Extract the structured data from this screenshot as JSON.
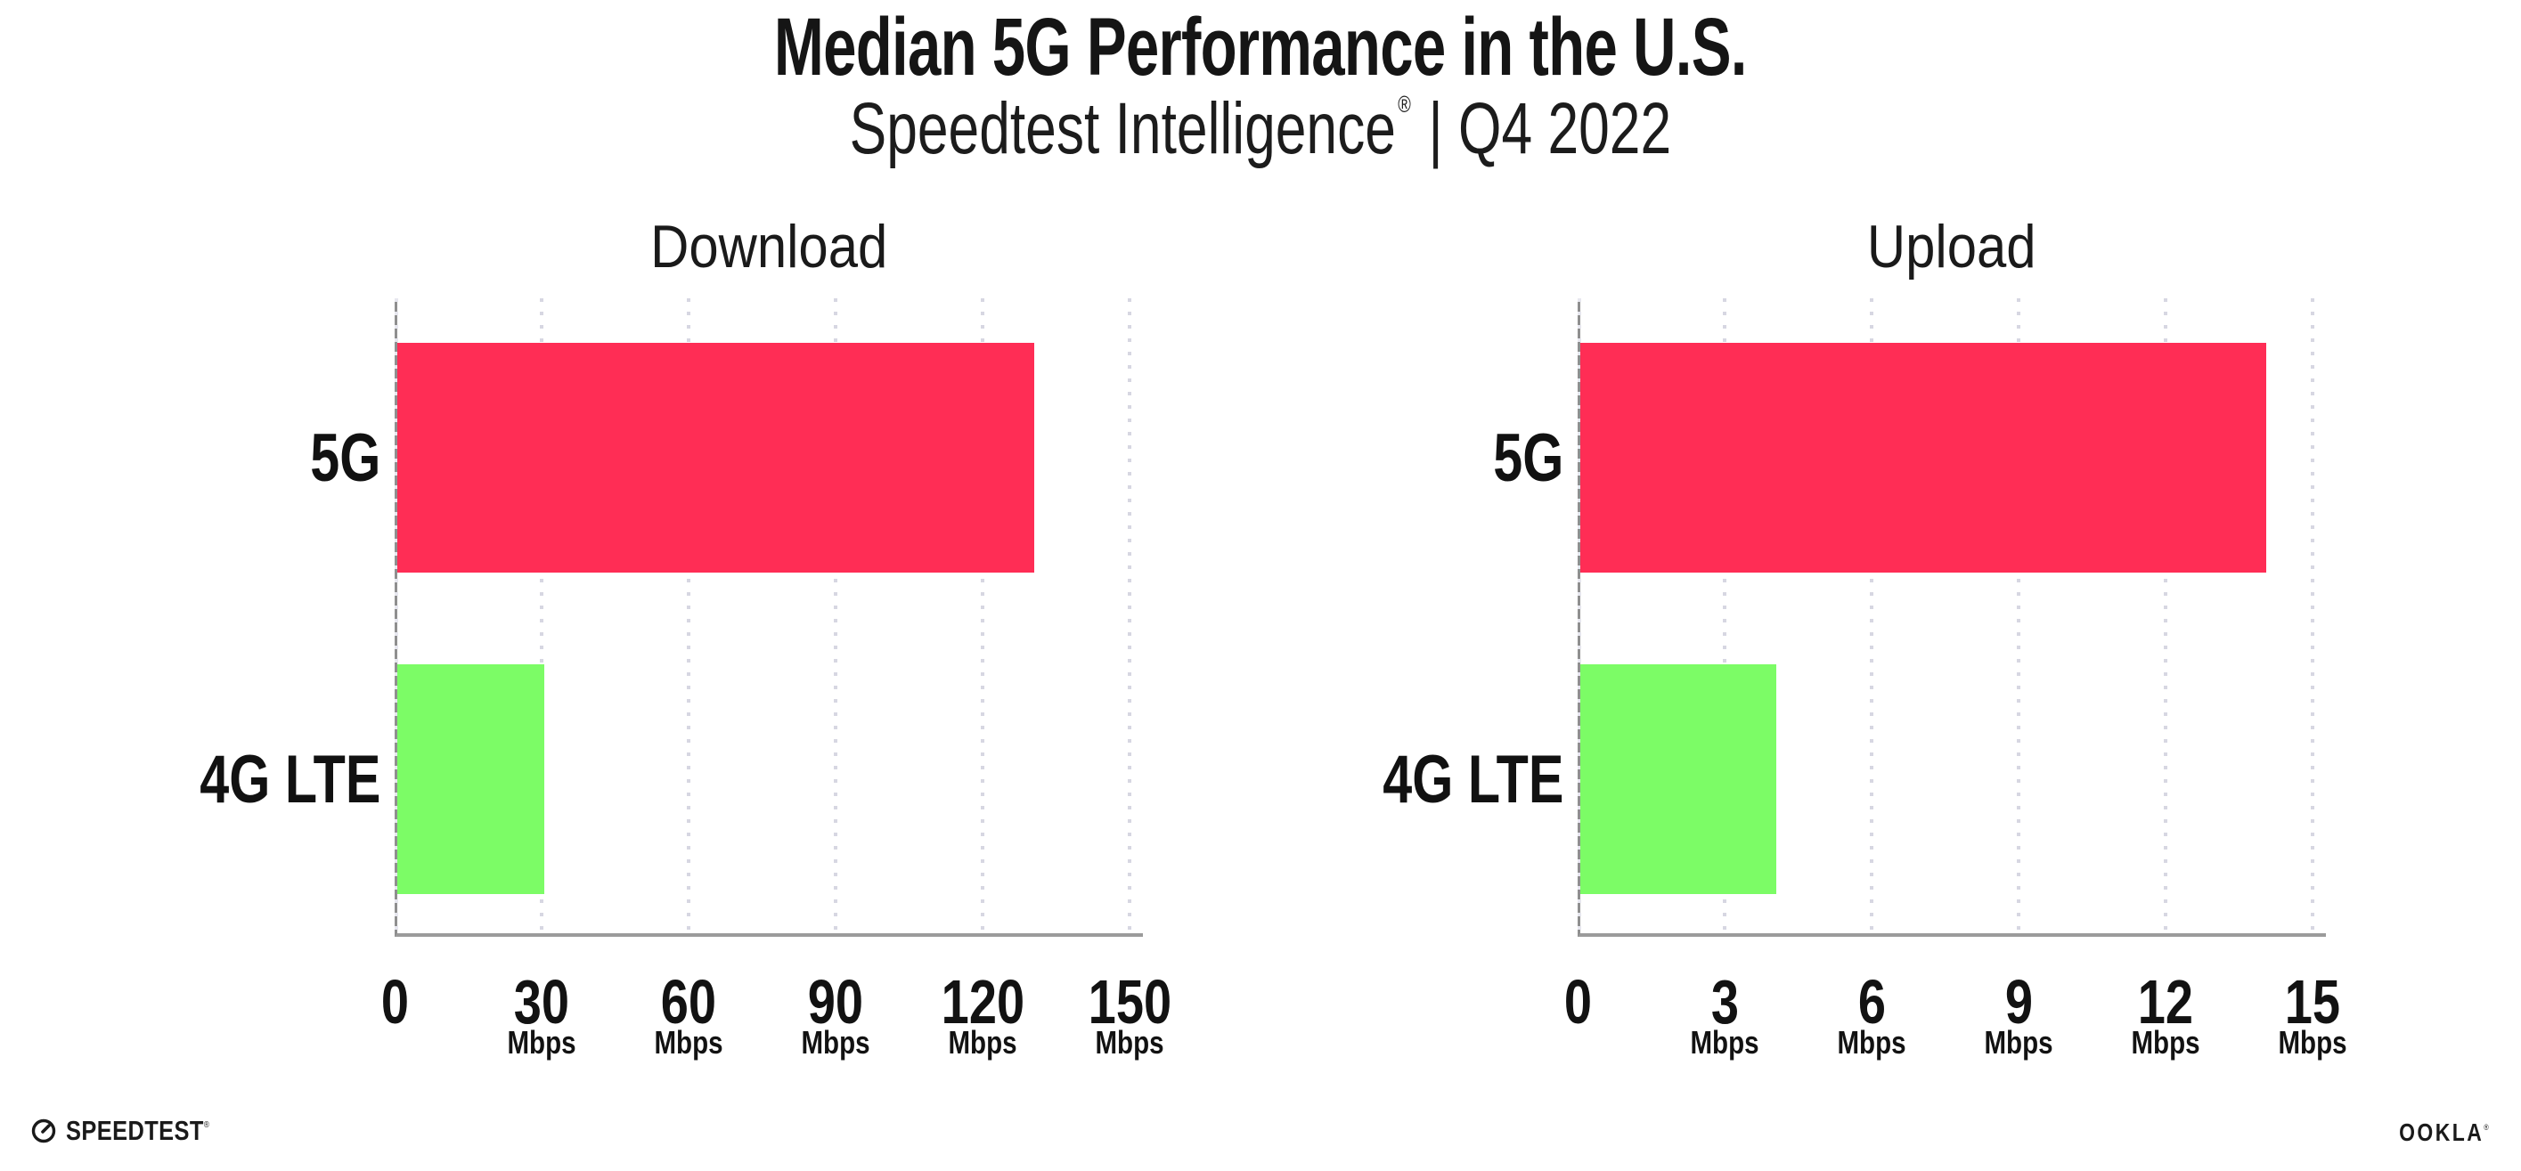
{
  "header": {
    "subtitle_brand": "Speedtest Intelligence",
    "subtitle_reg": "®",
    "subtitle_rest": "| Q4 2022"
  },
  "chart_data": {
    "type": "bar",
    "orientation": "horizontal",
    "title": "Median 5G Performance in the U.S.",
    "subtitle": "Speedtest Intelligence® | Q4 2022",
    "grid": "vertical dotted gridlines",
    "legend": false,
    "charts": [
      {
        "title": "Download",
        "categories": [
          "5G",
          "4G LTE"
        ],
        "values": [
          130,
          30
        ],
        "unit": "Mbps",
        "xlim": [
          0,
          150
        ],
        "xticks": [
          0,
          30,
          60,
          90,
          120,
          150
        ],
        "bar_colors": [
          "#FF2D55",
          "#7CFC66"
        ]
      },
      {
        "title": "Upload",
        "categories": [
          "5G",
          "4G LTE"
        ],
        "values": [
          14,
          4
        ],
        "unit": "Mbps",
        "xlim": [
          0,
          15
        ],
        "xticks": [
          0,
          3,
          6,
          9,
          12,
          15
        ],
        "bar_colors": [
          "#FF2D55",
          "#7CFC66"
        ]
      }
    ]
  },
  "colors": {
    "bar_5g": "#FF2D55",
    "bar_4g_lte": "#7CFC66",
    "axis": "#9B9B9B",
    "y_axis": "#8F8F8F",
    "grid_dots": "#D7D7E2",
    "text": "#111111"
  },
  "footer": {
    "speedtest_label": "SPEEDTEST",
    "speedtest_tm": "®",
    "ookla_label": "OOKLA",
    "ookla_tm": "®"
  }
}
